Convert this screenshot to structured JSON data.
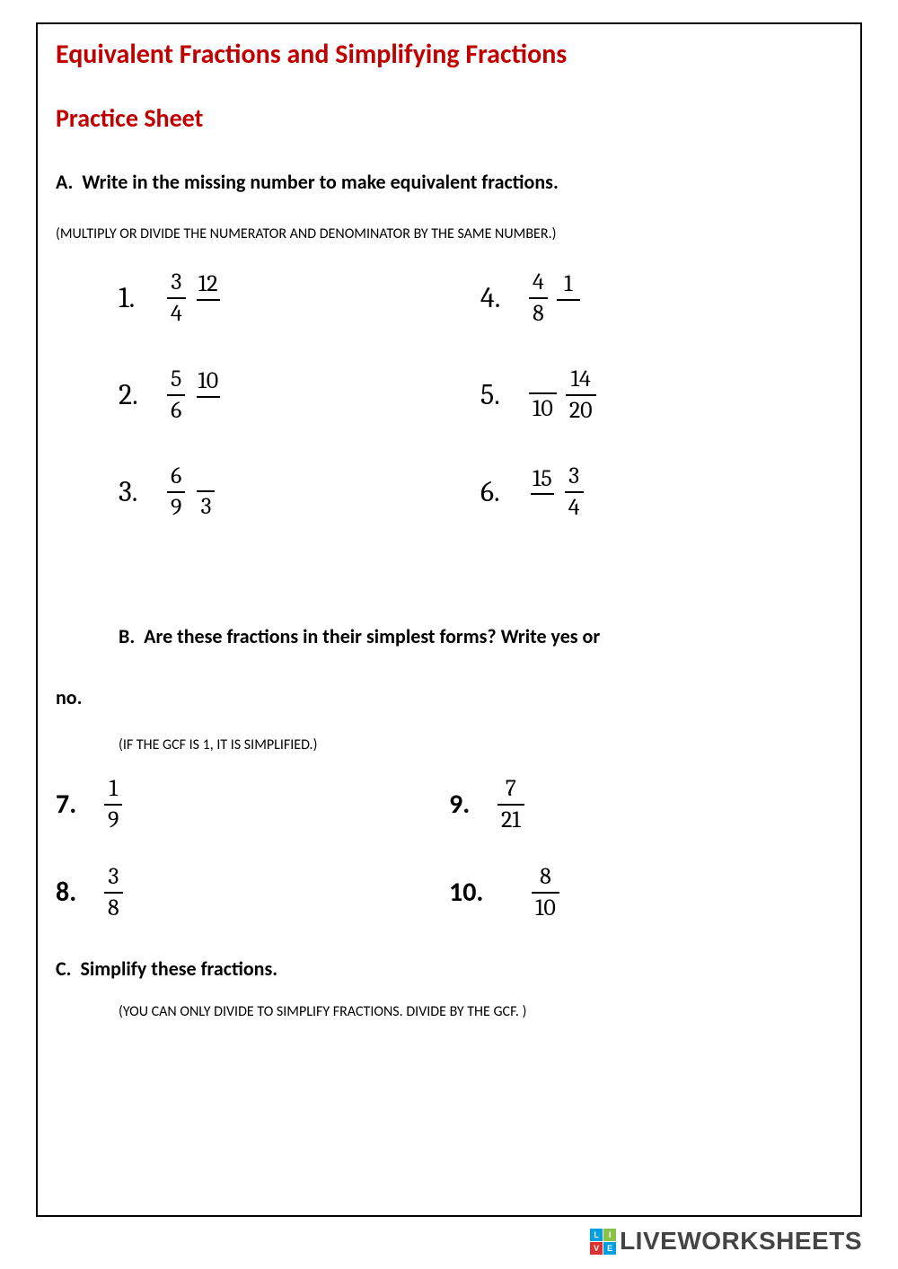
{
  "title": "Equivalent Fractions and Simplifying Fractions",
  "subtitle": "Practice Sheet",
  "sectionA": {
    "letter": "A.",
    "text": "Write in the missing number to make equivalent fractions.",
    "hint": "(MULTIPLY OR DIVIDE THE NUMERATOR AND DENOMINATOR BY THE SAME NUMBER.)",
    "problems": [
      {
        "n": "1.",
        "f1": {
          "num": "3",
          "den": "4"
        },
        "f2": {
          "num": "12",
          "den": ""
        }
      },
      {
        "n": "4.",
        "f1": {
          "num": "4",
          "den": "8"
        },
        "f2": {
          "num": "1",
          "den": ""
        }
      },
      {
        "n": "2.",
        "f1": {
          "num": "5",
          "den": "6"
        },
        "f2": {
          "num": "10",
          "den": ""
        }
      },
      {
        "n": "5.",
        "f1": {
          "num": "",
          "den": "10"
        },
        "f2": {
          "num": "14",
          "den": "20"
        }
      },
      {
        "n": "3.",
        "f1": {
          "num": "6",
          "den": "9"
        },
        "f2": {
          "num": "",
          "den": "3"
        }
      },
      {
        "n": "6.",
        "f1": {
          "num": "15",
          "den": ""
        },
        "f2": {
          "num": "3",
          "den": "4"
        }
      }
    ]
  },
  "sectionB": {
    "letter": "B.",
    "text": "Are these fractions in their simplest forms? Write yes or",
    "text2": "no.",
    "hint": "(IF THE GCF IS 1, IT IS SIMPLIFIED.)",
    "problems": [
      {
        "n": "7.",
        "num": "1",
        "den": "9"
      },
      {
        "n": "9.",
        "num": "7",
        "den": "21"
      },
      {
        "n": "8.",
        "num": "3",
        "den": "8"
      },
      {
        "n": "10.",
        "num": "8",
        "den": "10"
      }
    ]
  },
  "sectionC": {
    "letter": "C.",
    "text": "Simplify these fractions.",
    "hint": "(YOU CAN ONLY DIVIDE TO SIMPLIFY FRACTIONS. DIVIDE BY THE GCF. )"
  },
  "logo": {
    "squares": [
      "L",
      "I",
      "V",
      "E"
    ],
    "colors": [
      "#00a0e0",
      "#8bc34a",
      "#e03030",
      "#00a0e0"
    ],
    "text": "LIVEWORKSHEETS"
  }
}
